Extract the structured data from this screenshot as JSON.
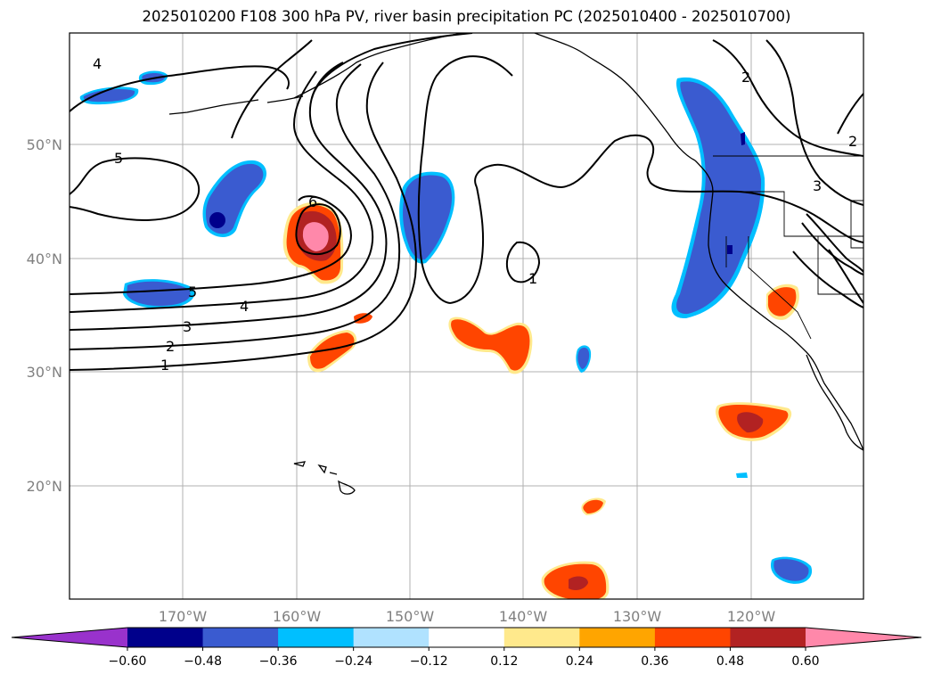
{
  "title": "2025010200 F108 300 hPa PV, river basin precipitation PC (2025010400 - 2025010700)",
  "latitude_labels": [
    "50°N",
    "40°N",
    "30°N",
    "20°N"
  ],
  "longitude_labels": [
    "170°W",
    "160°W",
    "150°W",
    "140°W",
    "130°W",
    "120°W"
  ],
  "contour_labels": {
    "c4_top": "4",
    "c5_left": "5",
    "c6": "6",
    "c5_mid": "5",
    "c4_mid": "4",
    "c3": "3",
    "c2": "2",
    "c1": "1",
    "c1_east": "1",
    "c2_ne": "2",
    "c3_ne": "3",
    "c2_right": "2"
  },
  "colorbar": {
    "ticks": [
      "−0.60",
      "−0.48",
      "−0.36",
      "−0.24",
      "−0.12",
      "0.12",
      "0.24",
      "0.36",
      "0.48",
      "0.60"
    ],
    "colors": [
      "#9932cc",
      "#00008b",
      "#3a5bd0",
      "#00bfff",
      "#b0e2ff",
      "#ffffff",
      "#ffe98c",
      "#ffa500",
      "#ff4500",
      "#b22222",
      "#ff88aa"
    ]
  }
}
